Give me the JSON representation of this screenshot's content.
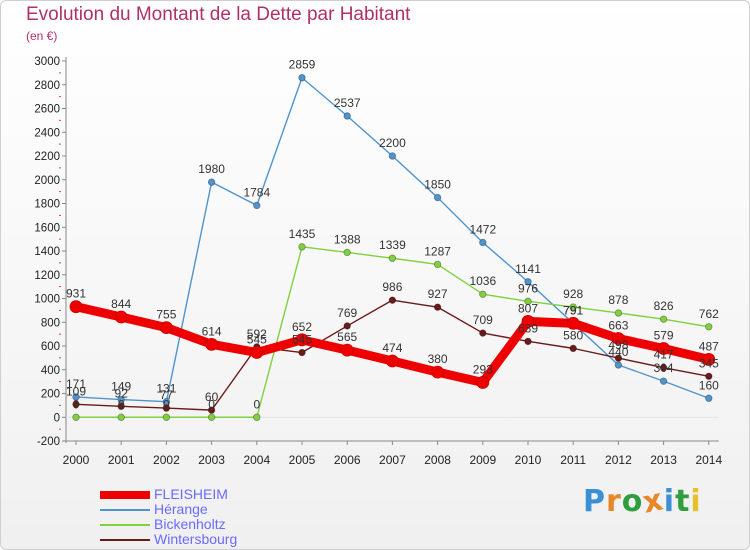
{
  "title": "Evolution du Montant de la Dette par Habitant",
  "unit_label": "(en €)",
  "brand": {
    "text": "Proxiti",
    "colors": [
      "#3b8fd6",
      "#e8862a",
      "#2e9e3e",
      "#e8862a",
      "#3b8fd6",
      "#2e9e3e",
      "#e8c02a"
    ]
  },
  "chart_data": {
    "type": "line",
    "title": "Evolution du Montant de la Dette par Habitant",
    "ylabel": "(en €)",
    "xlabel": "",
    "ylim": [
      -200,
      3000
    ],
    "yticks": [
      -200,
      0,
      200,
      400,
      600,
      800,
      1000,
      1200,
      1400,
      1600,
      1800,
      2000,
      2200,
      2400,
      2600,
      2800,
      3000
    ],
    "grid": false,
    "legend_position": "bottom-left",
    "x": [
      "2000",
      "2001",
      "2002",
      "2003",
      "2004",
      "2005",
      "2006",
      "2007",
      "2008",
      "2009",
      "2010",
      "2011",
      "2012",
      "2013",
      "2014"
    ],
    "series": [
      {
        "name": "FLEISHEIM",
        "color": "#ee0000",
        "values": [
          931,
          844,
          755,
          614,
          545,
          652,
          565,
          474,
          380,
          293,
          807,
          791,
          663,
          579,
          487
        ]
      },
      {
        "name": "Hérange",
        "color": "#4f94cd",
        "values": [
          171,
          149,
          131,
          1980,
          1784,
          2859,
          2537,
          2200,
          1850,
          1472,
          1141,
          791,
          440,
          304,
          160
        ]
      },
      {
        "name": "Bickenholtz",
        "color": "#80d040",
        "values": [
          0,
          0,
          0,
          0,
          0,
          1435,
          1388,
          1339,
          1287,
          1036,
          976,
          928,
          878,
          826,
          762
        ]
      },
      {
        "name": "Wintersbourg",
        "color": "#6b1a1a",
        "values": [
          109,
          92,
          77,
          60,
          592,
          545,
          769,
          986,
          927,
          709,
          639,
          580,
          498,
          417,
          345
        ]
      }
    ]
  }
}
